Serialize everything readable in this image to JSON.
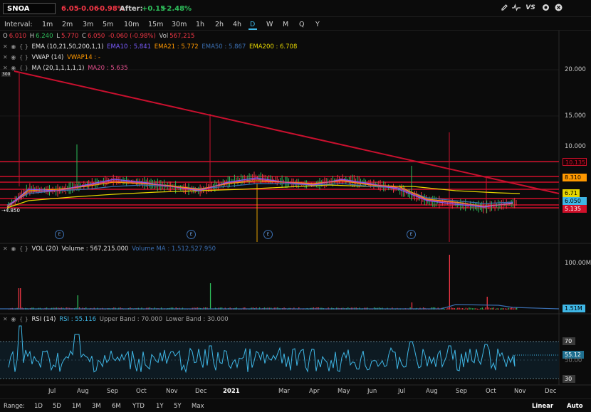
{
  "symbol": "SNOA",
  "quote": {
    "price": "6.05",
    "change": "-0.06",
    "change_pct": "-0.98%",
    "after_label": "After:",
    "after_change": "+0.15",
    "after_pct": "+2.48%"
  },
  "toolbar_icons": [
    "pencil-icon",
    "pulse-icon",
    "vs-icon",
    "gear-icon",
    "close-icon"
  ],
  "toolbar_vs": "VS",
  "interval": {
    "label": "Interval:",
    "options": [
      "1m",
      "2m",
      "3m",
      "5m",
      "10m",
      "15m",
      "30m",
      "1h",
      "2h",
      "4h",
      "D",
      "W",
      "M",
      "Q",
      "Y"
    ],
    "active": "D"
  },
  "ohlc": {
    "o_label": "O",
    "o": "6.010",
    "h_label": "H",
    "h": "6.240",
    "l_label": "L",
    "l": "5.770",
    "c_label": "C",
    "c": "6.050",
    "chg": "-0.060 (-0.98%)",
    "vol_label": "Vol",
    "vol": "567,215"
  },
  "indicators": {
    "ema": {
      "name": "EMA (10,21,50,200,1,1)",
      "ema10": "EMA10 : 5.841",
      "ema21": "EMA21 : 5.772",
      "ema50": "EMA50 : 5.867",
      "ema200": "EMA200 : 6.708"
    },
    "vwap": {
      "name": "VWAP (14)",
      "value": "VWAP14 : -"
    },
    "ma": {
      "name": "MA (20,1,1,1,1,1)",
      "value": "MA20 : 5.635"
    },
    "vol": {
      "name": "VOL (20)",
      "volume": "Volume : 567,215.000",
      "ma": "Volume MA : 1,512,527.950"
    },
    "rsi": {
      "name": "RSI (14)",
      "rsi": "RSI : 55.116",
      "upper": "Upper Band : 70.000",
      "lower": "Lower Band : 30.000"
    }
  },
  "price_axis": [
    "20.000",
    "15.000",
    "10.000"
  ],
  "price_tags": {
    "t1": "10.135",
    "t2": "8.310",
    "t3": "6.71",
    "t4": "6.050",
    "t5": "5.135"
  },
  "price_markers": {
    "high_marker": "300",
    "low_marker": "4.850"
  },
  "volume_axis": [
    "100.00M"
  ],
  "volume_tag": "1.51M",
  "rsi_axis": {
    "upper": "70",
    "current": "55.12",
    "mid": "50.00",
    "lower": "30"
  },
  "months": [
    "Jul",
    "Aug",
    "Sep",
    "Oct",
    "Nov",
    "Dec",
    "2021",
    "Mar",
    "Apr",
    "May",
    "Jun",
    "Jul",
    "Aug",
    "Sep",
    "Oct",
    "Nov",
    "Dec"
  ],
  "earnings_marker": "E",
  "range": {
    "label": "Range:",
    "options": [
      "1D",
      "5D",
      "1M",
      "3M",
      "6M",
      "YTD",
      "1Y",
      "5Y",
      "Max"
    ]
  },
  "scale": {
    "linear": "Linear",
    "auto": "Auto"
  },
  "colors": {
    "up": "#2ebd5a",
    "down": "#f23645",
    "accent": "#3fb7e6",
    "trendline": "#c8102e",
    "ema10": "#7a5cff",
    "ema21": "#ff9800",
    "ema50": "#3b6fb2",
    "ema200": "#e6d600",
    "rsi": "#3fb7e6"
  },
  "chart_data": {
    "type": "line",
    "title": "",
    "series": [
      {
        "name": "EMA200",
        "values": [
          6.708
        ]
      },
      {
        "name": "EMA50",
        "values": [
          5.867
        ]
      },
      {
        "name": "EMA21",
        "values": [
          5.772
        ]
      },
      {
        "name": "EMA10",
        "values": [
          5.841
        ]
      },
      {
        "name": "MA20",
        "values": [
          5.635
        ]
      }
    ],
    "ylim": [
      4,
      21
    ],
    "rsi_bands": [
      30,
      70
    ],
    "rsi_last": 55.116,
    "volume_last": 567215,
    "volume_ma": 1512527.95
  }
}
